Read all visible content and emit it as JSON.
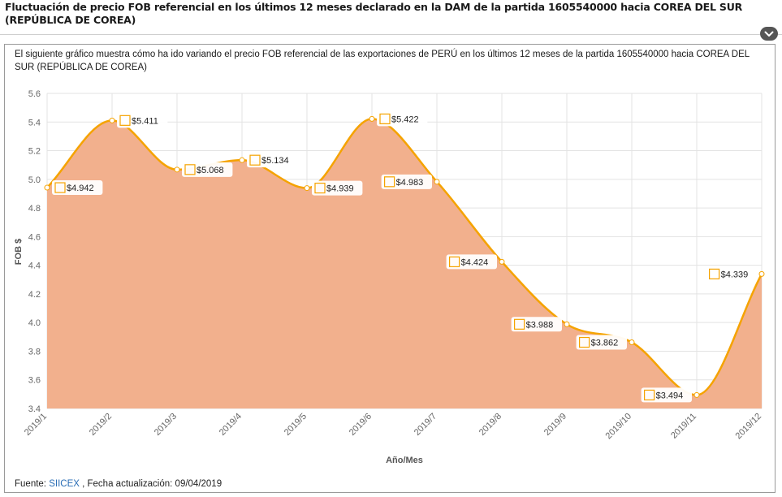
{
  "header": {
    "title": "Fluctuación de precio FOB referencial en los últimos 12 meses declarado en la DAM de la partida 1605540000 hacia COREA DEL SUR (REPÚBLICA DE COREA)"
  },
  "description": "El siguiente gráfico muestra cómo ha ido variando el precio FOB referencial de las exportaciones de PERÚ en los últimos 12 meses de la partida 1605540000 hacia COREA DEL SUR (REPÚBLICA DE COREA)",
  "footer": {
    "source_label": "Fuente:",
    "source_link": "SIICEX",
    "update_text": ", Fecha actualización: 09/04/2019"
  },
  "chart_data": {
    "type": "area",
    "xlabel": "Año/Mes",
    "ylabel": "FOB $",
    "categories": [
      "2019/1",
      "2019/2",
      "2019/3",
      "2019/4",
      "2019/5",
      "2019/6",
      "2019/7",
      "2019/8",
      "2019/9",
      "2019/10",
      "2019/11",
      "2019/12"
    ],
    "values": [
      4.942,
      5.411,
      5.068,
      5.134,
      4.939,
      5.422,
      4.983,
      4.424,
      3.988,
      3.862,
      3.494,
      4.339
    ],
    "data_labels": [
      "$4.942",
      "$5.411",
      "$5.068",
      "$5.134",
      "$4.939",
      "$5.422",
      "$4.983",
      "$4.424",
      "$3.988",
      "$3.862",
      "$3.494",
      "$4.339"
    ],
    "ylim": [
      3.4,
      5.6
    ],
    "yticks": [
      "3.4",
      "3.6",
      "3.8",
      "4.0",
      "4.2",
      "4.4",
      "4.6",
      "4.8",
      "5.0",
      "5.2",
      "5.4",
      "5.6"
    ],
    "grid": true,
    "colors": {
      "line": "#f5a300",
      "fill": "#f2b08d",
      "label_box": "#f5a300"
    }
  }
}
